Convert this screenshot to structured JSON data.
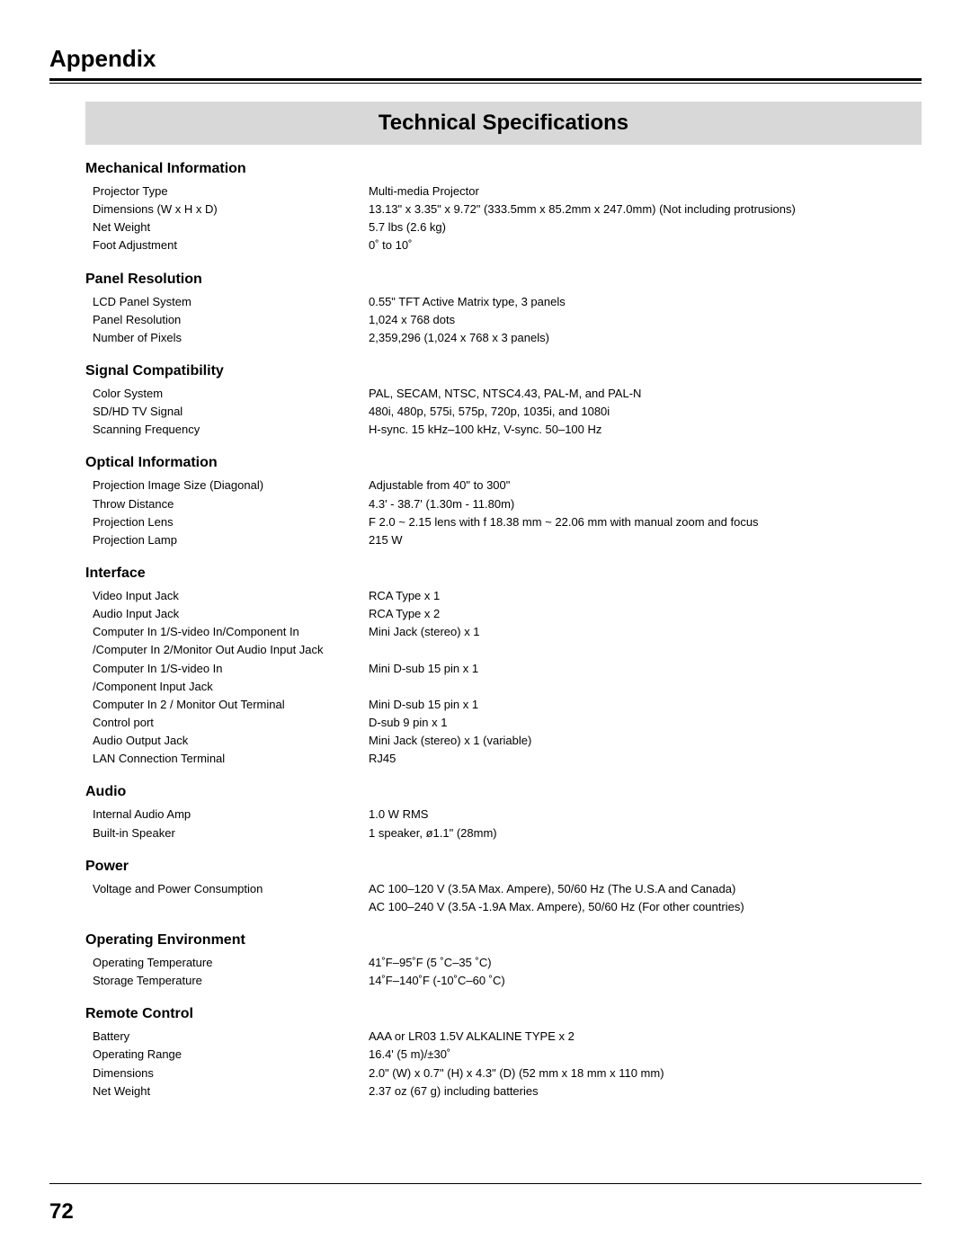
{
  "header": "Appendix",
  "banner": "Technical Specifications",
  "page_number": "72",
  "sections": [
    {
      "title": "Mechanical Information",
      "rows": [
        {
          "label": "Projector Type",
          "value": "Multi-media Projector"
        },
        {
          "label": "Dimensions (W x H x D)",
          "value": "13.13\" x  3.35\" x  9.72\" (333.5mm x 85.2mm x 247.0mm)  (Not including protrusions)"
        },
        {
          "label": "Net Weight",
          "value": "5.7 lbs (2.6 kg)"
        },
        {
          "label": "Foot Adjustment",
          "value": "0˚ to 10˚"
        }
      ]
    },
    {
      "title": "Panel Resolution",
      "rows": [
        {
          "label": "LCD Panel System",
          "value": "0.55\" TFT Active Matrix type, 3 panels"
        },
        {
          "label": "Panel Resolution",
          "value": "1,024 x 768 dots"
        },
        {
          "label": "Number of Pixels",
          "value": "2,359,296 (1,024 x 768 x 3 panels)"
        }
      ]
    },
    {
      "title": "Signal Compatibility",
      "rows": [
        {
          "label": "Color System",
          "value": "PAL, SECAM, NTSC, NTSC4.43, PAL-M, and PAL-N"
        },
        {
          "label": "SD/HD TV Signal",
          "value": "480i, 480p, 575i, 575p, 720p, 1035i, and 1080i"
        },
        {
          "label": "Scanning Frequency",
          "value": "H-sync. 15 kHz–100 kHz, V-sync. 50–100 Hz"
        }
      ]
    },
    {
      "title": "Optical Information",
      "rows": [
        {
          "label": "Projection Image Size (Diagonal)",
          "value": "Adjustable from 40\" to 300\""
        },
        {
          "label": "Throw Distance",
          "value": "4.3' - 38.7' (1.30m - 11.80m)"
        },
        {
          "label": "Projection Lens",
          "value": "F 2.0 ~ 2.15 lens with f 18.38 mm ~ 22.06 mm with manual zoom and focus"
        },
        {
          "label": "Projection Lamp",
          "value": "215 W"
        }
      ]
    },
    {
      "title": "Interface",
      "rows": [
        {
          "label": "Video Input Jack",
          "value": "RCA Type x 1"
        },
        {
          "label": "Audio Input Jack",
          "value": "RCA Type x 2"
        },
        {
          "label": "Computer In 1/S-video In/Component In",
          "value": "Mini Jack (stereo) x 1"
        },
        {
          "label": "/Computer In 2/Monitor Out Audio Input Jack",
          "value": ""
        },
        {
          "label": "Computer In 1/S-video In",
          "value": "Mini D-sub 15 pin x 1"
        },
        {
          "label": "/Component Input Jack",
          "value": ""
        },
        {
          "label": "Computer In 2 / Monitor Out Terminal",
          "value": "Mini D-sub 15 pin x 1"
        },
        {
          "label": "Control port",
          "value": "D-sub 9 pin x 1"
        },
        {
          "label": "Audio Output Jack",
          "value": "Mini Jack (stereo) x 1 (variable)"
        },
        {
          "label": "LAN Connection Terminal",
          "value": "RJ45"
        }
      ]
    },
    {
      "title": "Audio",
      "rows": [
        {
          "label": "Internal Audio Amp",
          "value": "1.0 W RMS"
        },
        {
          "label": "Built-in Speaker",
          "value": "1 speaker, ø1.1\" (28mm)"
        }
      ]
    },
    {
      "title": "Power",
      "rows": [
        {
          "label": "Voltage and Power Consumption",
          "value": "AC 100–120 V (3.5A Max. Ampere), 50/60 Hz (The U.S.A and Canada)"
        },
        {
          "label": "",
          "value": "AC 100–240 V (3.5A -1.9A Max. Ampere), 50/60 Hz (For other countries)"
        }
      ]
    },
    {
      "title": "Operating Environment",
      "rows": [
        {
          "label": "Operating Temperature",
          "value": "41˚F–95˚F (5 ˚C–35 ˚C)"
        },
        {
          "label": "Storage Temperature",
          "value": "14˚F–140˚F (-10˚C–60 ˚C)"
        }
      ]
    },
    {
      "title": "Remote Control",
      "rows": [
        {
          "label": "Battery",
          "value": "AAA or LR03 1.5V ALKALINE  TYPE x 2"
        },
        {
          "label": "Operating Range",
          "value": "16.4' (5 m)/±30˚"
        },
        {
          "label": "Dimensions",
          "value": "2.0\" (W) x 0.7\" (H) x 4.3\" (D) (52 mm x 18 mm x 110 mm)"
        },
        {
          "label": "Net Weight",
          "value": "2.37 oz (67 g) including batteries"
        }
      ]
    }
  ]
}
